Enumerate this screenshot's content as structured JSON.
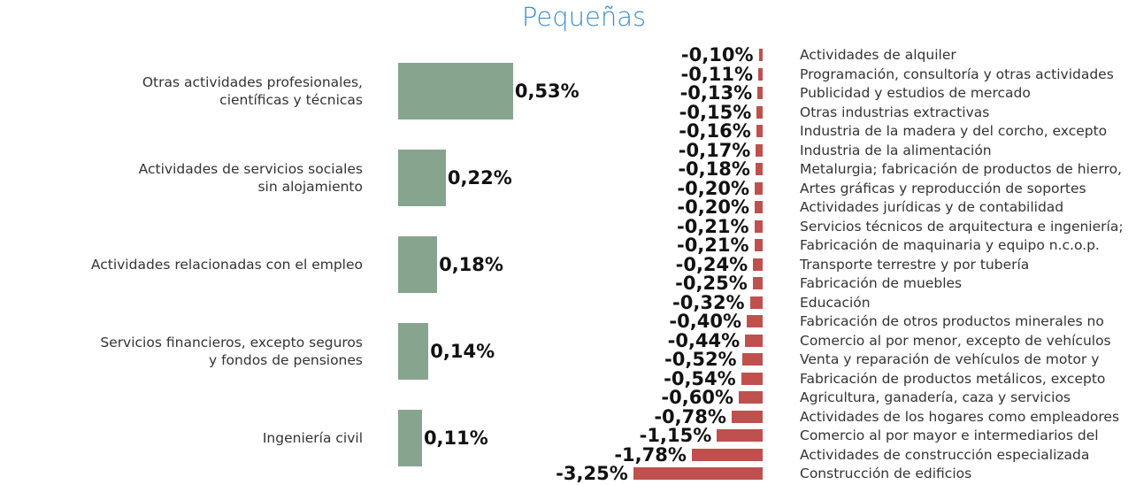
{
  "title": "Pequeñas",
  "chart_data": [
    {
      "type": "hbar",
      "color": "#87a48f",
      "xlim": [
        0,
        0.6
      ],
      "categories": [
        "Otras actividades profesionales,\ncientíficas y técnicas",
        "Actividades de servicios sociales\nsin alojamiento",
        "Actividades relacionadas con el empleo",
        "Servicios financieros, excepto seguros\ny fondos de pensiones",
        "Ingeniería civil"
      ],
      "values": [
        0.53,
        0.22,
        0.18,
        0.14,
        0.11
      ],
      "value_labels": [
        "0,53%",
        "0,22%",
        "0,18%",
        "0,14%",
        "0,11%"
      ]
    },
    {
      "type": "hbar",
      "color": "#c0504d",
      "xlim": [
        -3.5,
        0
      ],
      "categories": [
        "Actividades de alquiler",
        "Programación, consultoría y otras actividades",
        "Publicidad y estudios de mercado",
        "Otras industrias extractivas",
        "Industria de la madera y del corcho, excepto",
        "Industria de la alimentación",
        "Metalurgia; fabricación de productos de hierro,",
        "Artes gráficas y reproducción de soportes",
        "Actividades jurídicas y de contabilidad",
        "Servicios técnicos de arquitectura e ingeniería;",
        "Fabricación de maquinaria y equipo n.c.o.p.",
        "Transporte terrestre y por tubería",
        "Fabricación de muebles",
        "Educación",
        "Fabricación de otros productos minerales no",
        "Comercio al por menor, excepto de vehículos",
        "Venta y reparación de vehículos de motor y",
        "Fabricación de productos metálicos, excepto",
        "Agricultura, ganadería, caza y servicios",
        "Actividades de los hogares como empleadores",
        "Comercio al por mayor e intermediarios del",
        "Actividades de construcción especializada",
        "Construcción de edificios"
      ],
      "values": [
        -0.1,
        -0.11,
        -0.13,
        -0.15,
        -0.16,
        -0.17,
        -0.18,
        -0.2,
        -0.2,
        -0.21,
        -0.21,
        -0.24,
        -0.25,
        -0.32,
        -0.4,
        -0.44,
        -0.52,
        -0.54,
        -0.6,
        -0.78,
        -1.15,
        -1.78,
        -3.25
      ],
      "value_labels": [
        "-0,10%",
        "-0,11%",
        "-0,13%",
        "-0,15%",
        "-0,16%",
        "-0,17%",
        "-0,18%",
        "-0,20%",
        "-0,20%",
        "-0,21%",
        "-0,21%",
        "-0,24%",
        "-0,25%",
        "-0,32%",
        "-0,40%",
        "-0,44%",
        "-0,52%",
        "-0,54%",
        "-0,60%",
        "-0,78%",
        "-1,15%",
        "-1,78%",
        "-3,25%"
      ]
    }
  ]
}
